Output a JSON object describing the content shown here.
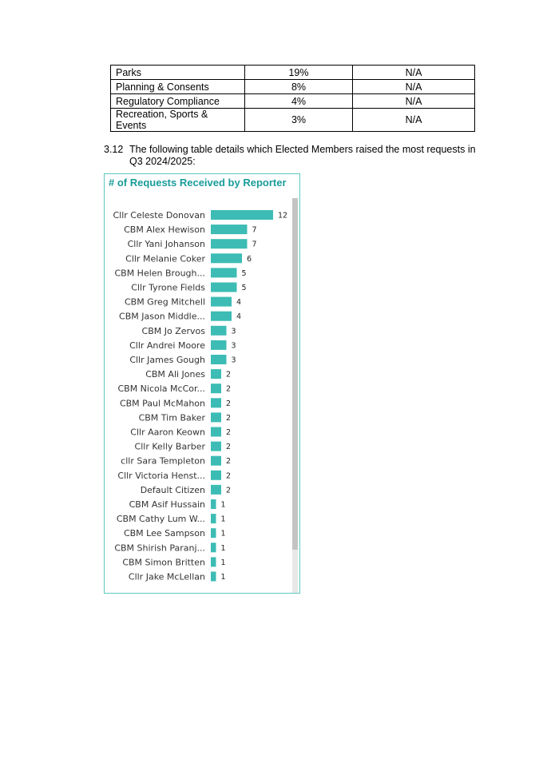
{
  "table": {
    "rows": [
      {
        "category": "Parks",
        "value": "19%",
        "other": "N/A"
      },
      {
        "category": "Planning & Consents",
        "value": "8%",
        "other": "N/A"
      },
      {
        "category": "Regulatory Compliance",
        "value": "4%",
        "other": "N/A"
      },
      {
        "category": "Recreation, Sports & Events",
        "value": "3%",
        "other": "N/A"
      }
    ]
  },
  "paragraph": {
    "number": "3.12",
    "text": "The following table details which Elected Members raised the most requests in Q3 2024/2025:"
  },
  "chart_data": {
    "type": "bar",
    "orientation": "horizontal",
    "title": "# of Requests Received by Reporter",
    "bar_color": "#3cbcb4",
    "categories": [
      "Cllr Celeste Donovan",
      "CBM Alex Hewison",
      "Cllr Yani Johanson",
      "Cllr Melanie Coker",
      "CBM Helen Brough...",
      "Cllr Tyrone Fields",
      "CBM Greg Mitchell",
      "CBM Jason Middle...",
      "CBM Jo Zervos",
      "Cllr Andrei Moore",
      "Cllr James Gough",
      "CBM Ali Jones",
      "CBM Nicola McCor...",
      "CBM Paul McMahon",
      "CBM Tim Baker",
      "Cllr Aaron Keown",
      "Cllr Kelly Barber",
      "cllr Sara Templeton",
      "Cllr Victoria Henst...",
      "Default Citizen",
      "CBM Asif Hussain",
      "CBM Cathy Lum W...",
      "CBM Lee Sampson",
      "CBM Shirish Paranj...",
      "CBM Simon Britten",
      "Cllr Jake McLellan"
    ],
    "values": [
      12,
      7,
      7,
      6,
      5,
      5,
      4,
      4,
      3,
      3,
      3,
      2,
      2,
      2,
      2,
      2,
      2,
      2,
      2,
      2,
      1,
      1,
      1,
      1,
      1,
      1
    ],
    "data_labels": [
      "12",
      "7",
      "7",
      "6",
      "5",
      "5",
      "4",
      "4",
      "3",
      "3",
      "3",
      "2",
      "2",
      "2",
      "2",
      "2",
      "2",
      "2",
      "2",
      "2",
      "1",
      "1",
      "1",
      "1",
      "1",
      "1"
    ],
    "xlim": [
      0,
      12
    ],
    "grid": false,
    "legend": "none"
  }
}
